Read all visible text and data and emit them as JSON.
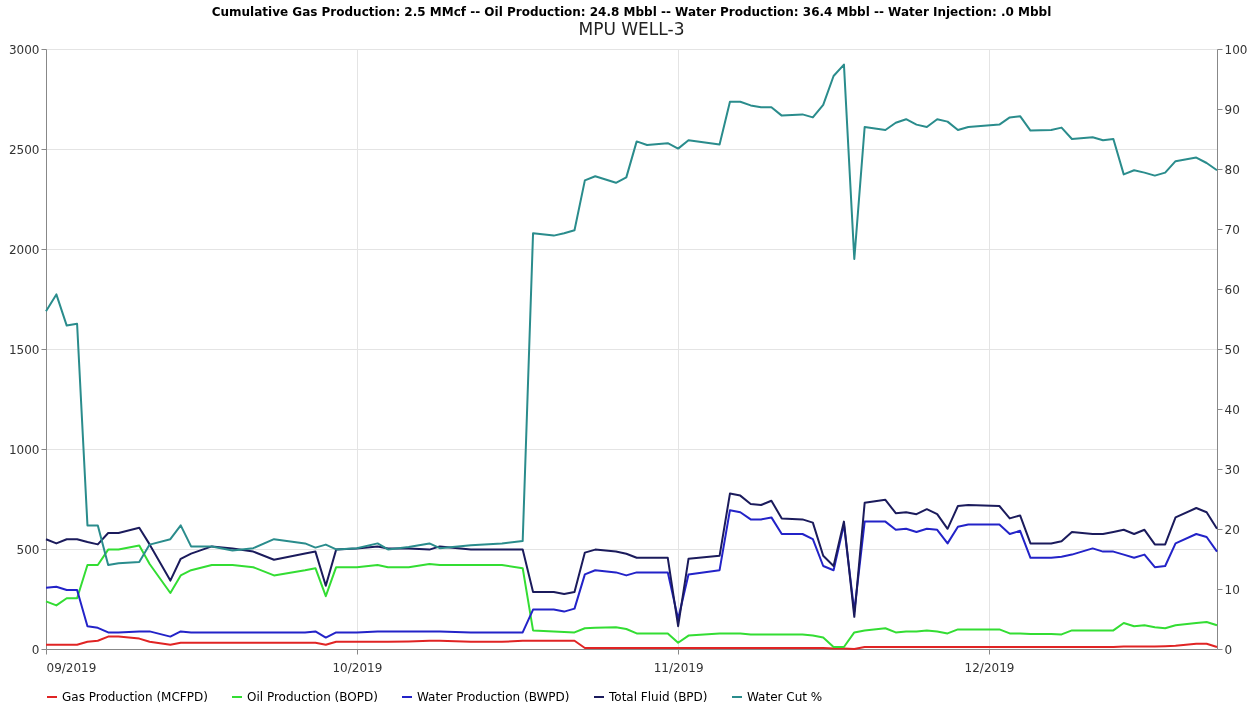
{
  "chart_data": {
    "type": "line",
    "title": "Cumulative Gas Production: 2.5 MMcf -- Oil Production: 24.8 Mbbl -- Water Production: 36.4 Mbbl -- Water Injection: .0 Mbbl",
    "subtitle": "MPU WELL-3",
    "x": [
      "2019-09-01",
      "2019-09-02",
      "2019-09-03",
      "2019-09-04",
      "2019-09-05",
      "2019-09-06",
      "2019-09-07",
      "2019-09-08",
      "2019-09-10",
      "2019-09-11",
      "2019-09-13",
      "2019-09-14",
      "2019-09-15",
      "2019-09-17",
      "2019-09-19",
      "2019-09-21",
      "2019-09-23",
      "2019-09-26",
      "2019-09-27",
      "2019-09-28",
      "2019-09-29",
      "2019-10-01",
      "2019-10-03",
      "2019-10-04",
      "2019-10-06",
      "2019-10-08",
      "2019-10-09",
      "2019-10-12",
      "2019-10-15",
      "2019-10-17",
      "2019-10-18",
      "2019-10-20",
      "2019-10-21",
      "2019-10-22",
      "2019-10-23",
      "2019-10-24",
      "2019-10-26",
      "2019-10-27",
      "2019-10-28",
      "2019-10-29",
      "2019-10-31",
      "2019-11-01",
      "2019-11-02",
      "2019-11-05",
      "2019-11-06",
      "2019-11-07",
      "2019-11-08",
      "2019-11-09",
      "2019-11-10",
      "2019-11-11",
      "2019-11-13",
      "2019-11-14",
      "2019-11-15",
      "2019-11-16",
      "2019-11-17",
      "2019-11-18",
      "2019-11-19",
      "2019-11-21",
      "2019-11-22",
      "2019-11-23",
      "2019-11-24",
      "2019-11-25",
      "2019-11-26",
      "2019-11-27",
      "2019-11-28",
      "2019-11-29",
      "2019-12-02",
      "2019-12-03",
      "2019-12-04",
      "2019-12-05",
      "2019-12-07",
      "2019-12-08",
      "2019-12-09",
      "2019-12-11",
      "2019-12-12",
      "2019-12-13",
      "2019-12-14",
      "2019-12-15",
      "2019-12-16",
      "2019-12-17",
      "2019-12-18",
      "2019-12-19",
      "2019-12-21",
      "2019-12-22",
      "2019-12-23"
    ],
    "series": [
      {
        "name": "Gas Production (MCFPD)",
        "color": "#e02424",
        "values": [
          21,
          21,
          21,
          21,
          36,
          41,
          62,
          62,
          52,
          36,
          21,
          31,
          31,
          31,
          31,
          31,
          31,
          31,
          31,
          21,
          36,
          36,
          36,
          36,
          38,
          41,
          41,
          36,
          36,
          41,
          41,
          41,
          41,
          41,
          5,
          5,
          5,
          5,
          5,
          5,
          5,
          5,
          5,
          5,
          5,
          5,
          5,
          5,
          5,
          5,
          5,
          5,
          5,
          3,
          3,
          0,
          10,
          10,
          10,
          10,
          10,
          10,
          10,
          10,
          10,
          10,
          10,
          10,
          10,
          10,
          10,
          10,
          10,
          10,
          10,
          10,
          12,
          12,
          12,
          12,
          14,
          16,
          26,
          26,
          10
        ]
      },
      {
        "name": "Oil Production (BOPD)",
        "color": "#33dd33",
        "values": [
          238,
          218,
          254,
          254,
          420,
          420,
          497,
          497,
          518,
          425,
          280,
          368,
          394,
          420,
          420,
          409,
          368,
          394,
          404,
          264,
          409,
          409,
          420,
          409,
          409,
          425,
          420,
          420,
          420,
          404,
          93,
          88,
          85,
          83,
          104,
          106,
          109,
          100,
          78,
          78,
          78,
          31,
          67,
          78,
          78,
          78,
          73,
          73,
          73,
          73,
          73,
          67,
          57,
          10,
          10,
          83,
          93,
          104,
          83,
          88,
          88,
          93,
          88,
          78,
          98,
          98,
          98,
          78,
          78,
          75,
          75,
          73,
          93,
          93,
          93,
          93,
          130,
          114,
          119,
          109,
          104,
          119,
          130,
          135,
          119
        ]
      },
      {
        "name": "Water Production (BWPD)",
        "color": "#2323c8",
        "values": [
          306,
          311,
          295,
          295,
          114,
          106,
          83,
          83,
          88,
          88,
          62,
          88,
          83,
          83,
          83,
          83,
          83,
          83,
          88,
          57,
          83,
          83,
          88,
          88,
          88,
          88,
          88,
          83,
          83,
          83,
          197,
          197,
          187,
          202,
          373,
          394,
          383,
          368,
          383,
          383,
          383,
          150,
          373,
          394,
          694,
          684,
          648,
          648,
          658,
          575,
          575,
          549,
          415,
          394,
          622,
          187,
          637,
          637,
          596,
          601,
          585,
          601,
          596,
          528,
          611,
          622,
          622,
          575,
          591,
          456,
          456,
          461,
          472,
          503,
          487,
          487,
          472,
          456,
          472,
          409,
          415,
          528,
          575,
          560,
          487
        ]
      },
      {
        "name": "Total Fluid (BPD)",
        "color": "#1b1b5c",
        "values": [
          549,
          528,
          549,
          549,
          535,
          523,
          580,
          580,
          606,
          523,
          342,
          451,
          477,
          513,
          503,
          487,
          446,
          477,
          487,
          316,
          497,
          503,
          513,
          503,
          503,
          497,
          513,
          497,
          497,
          497,
          285,
          285,
          275,
          285,
          482,
          497,
          487,
          476,
          456,
          456,
          456,
          114,
          451,
          466,
          777,
          767,
          725,
          720,
          741,
          653,
          648,
          632,
          466,
          415,
          637,
          161,
          731,
          746,
          679,
          684,
          674,
          699,
          674,
          601,
          715,
          720,
          715,
          653,
          668,
          528,
          528,
          539,
          585,
          575,
          575,
          585,
          596,
          575,
          596,
          523,
          523,
          658,
          705,
          684,
          601
        ]
      },
      {
        "name": "Water Cut %",
        "color": "#2a8c8c",
        "axis": "y2",
        "values": [
          56.3,
          59.1,
          53.9,
          54.2,
          20.6,
          20.6,
          14.0,
          14.3,
          14.5,
          17.4,
          18.3,
          20.6,
          17.1,
          17.1,
          16.4,
          16.8,
          18.3,
          17.6,
          16.9,
          17.4,
          16.6,
          16.8,
          17.6,
          16.6,
          17.0,
          17.6,
          16.8,
          17.3,
          17.6,
          18.0,
          69.3,
          68.9,
          69.3,
          69.8,
          78.1,
          78.8,
          77.7,
          78.6,
          84.6,
          84.0,
          84.3,
          83.4,
          84.8,
          84.1,
          91.2,
          91.2,
          90.6,
          90.3,
          90.3,
          88.9,
          89.1,
          88.6,
          90.7,
          95.5,
          97.4,
          65.0,
          87.0,
          86.5,
          87.7,
          88.3,
          87.4,
          87.0,
          88.3,
          87.9,
          86.5,
          87.0,
          87.4,
          88.6,
          88.8,
          86.4,
          86.5,
          86.9,
          85.0,
          85.3,
          84.8,
          85.0,
          79.1,
          79.8,
          79.4,
          78.9,
          79.4,
          81.3,
          81.9,
          81.0,
          79.8
        ]
      }
    ],
    "xlim": [
      "2019-09-01",
      "2019-12-23"
    ],
    "xticks": [
      {
        "value": "2019-09-01",
        "label": "09/2019"
      },
      {
        "value": "2019-10-01",
        "label": "10/2019"
      },
      {
        "value": "2019-11-01",
        "label": "11/2019"
      },
      {
        "value": "2019-12-01",
        "label": "12/2019"
      }
    ],
    "ylim": [
      0,
      3000
    ],
    "yticks": [
      0,
      500,
      1000,
      1500,
      2000,
      2500,
      3000
    ],
    "y2lim": [
      0,
      100
    ],
    "y2ticks": [
      0,
      10,
      20,
      30,
      40,
      50,
      60,
      70,
      80,
      90,
      100
    ],
    "grid": true,
    "legend": "bottom",
    "marker": "none",
    "line_style": "solid"
  }
}
